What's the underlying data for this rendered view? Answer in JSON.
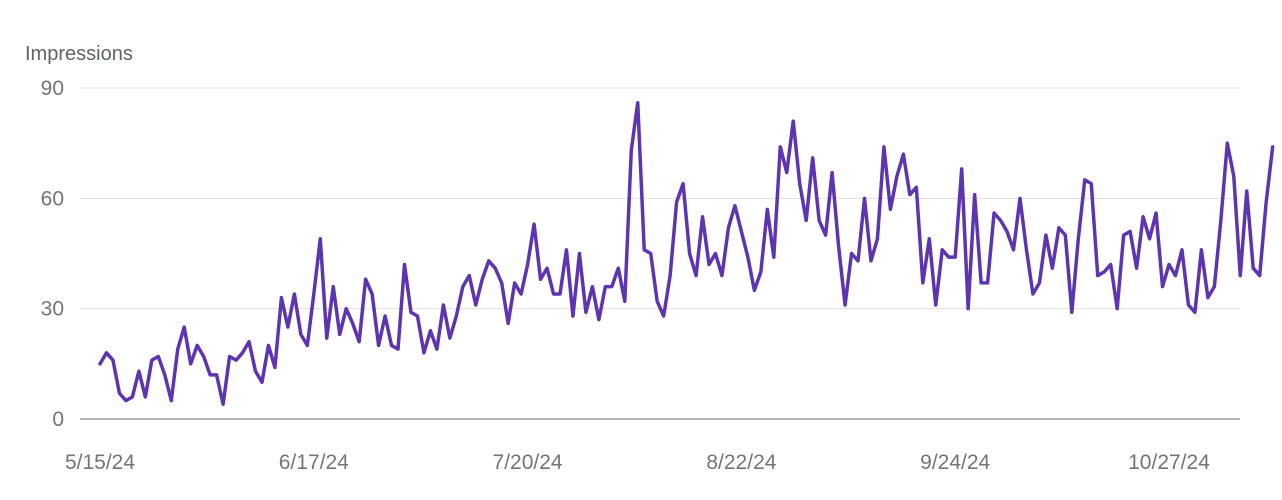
{
  "chart_data": {
    "type": "line",
    "ylabel": "Impressions",
    "ylim": [
      0,
      90
    ],
    "yticks": [
      0,
      30,
      60,
      90
    ],
    "xlim": [
      "2024-05-15",
      "2024-11-11"
    ],
    "xticks": [
      "2024-05-15",
      "2024-06-17",
      "2024-07-20",
      "2024-08-22",
      "2024-09-24",
      "2024-10-27"
    ],
    "xtick_labels": [
      "5/15/24",
      "6/17/24",
      "7/20/24",
      "8/22/24",
      "9/24/24",
      "10/27/24"
    ],
    "grid": true,
    "line_color": "#5e35b1",
    "series": [
      {
        "x_start": "2024-05-15",
        "x_step_days": 1,
        "values": [
          15,
          18,
          16,
          7,
          5,
          6,
          13,
          6,
          16,
          17,
          12,
          5,
          19,
          25,
          15,
          20,
          17,
          12,
          12,
          4,
          17,
          16,
          18,
          21,
          13,
          10,
          20,
          14,
          33,
          25,
          34,
          23,
          20,
          34,
          49,
          22,
          36,
          23,
          30,
          26,
          21,
          38,
          34,
          20,
          28,
          20,
          19,
          42,
          29,
          28,
          18,
          24,
          19,
          31,
          22,
          28,
          36,
          39,
          31,
          38,
          43,
          41,
          37,
          26,
          37,
          34,
          42,
          53,
          38,
          41,
          34,
          34,
          46,
          28,
          45,
          29,
          36,
          27,
          36,
          36,
          41,
          32,
          73,
          86,
          46,
          45,
          32,
          28,
          39,
          59,
          64,
          45,
          39,
          55,
          42,
          45,
          39,
          52,
          58,
          51,
          44,
          35,
          40,
          57,
          44,
          74,
          67,
          81,
          64,
          54,
          71,
          54,
          50,
          67,
          47,
          31,
          45,
          43,
          60,
          43,
          49,
          74,
          57,
          66,
          72,
          61,
          63,
          37,
          49,
          31,
          46,
          44,
          44,
          68,
          30,
          61,
          37,
          37,
          56,
          54,
          51,
          46,
          60,
          46,
          34,
          37,
          50,
          41,
          52,
          50,
          29,
          49,
          65,
          64,
          39,
          40,
          42,
          30,
          50,
          51,
          41,
          55,
          49,
          56,
          36,
          42,
          39,
          46,
          31,
          29,
          46,
          33,
          36,
          54,
          75,
          66,
          39,
          62,
          41,
          39,
          59,
          74
        ]
      }
    ]
  }
}
